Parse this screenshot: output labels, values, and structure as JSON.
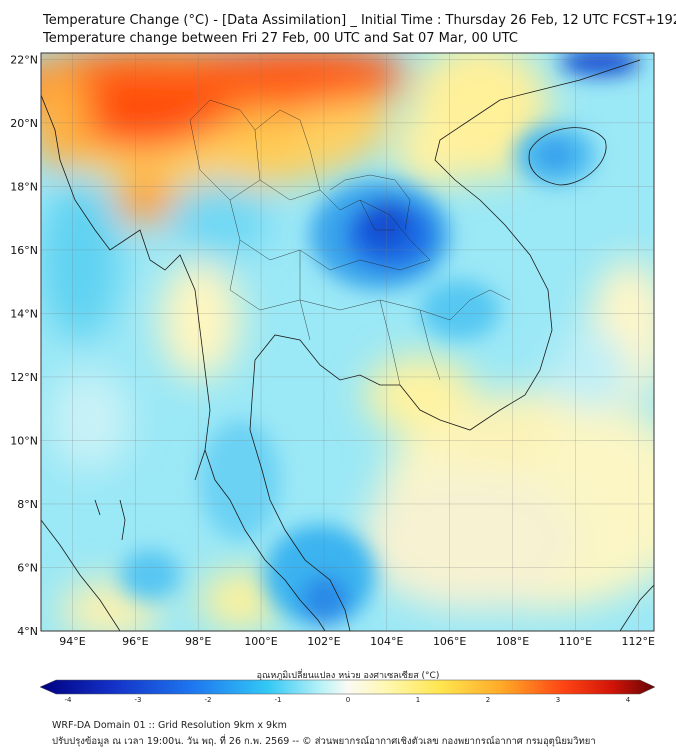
{
  "title": {
    "line1": "Temperature Change (°C) - [Data Assimilation] _ Initial Time : Thursday 26 Feb, 12 UTC FCST+192",
    "line2": "Temperature change between Fri 27 Feb, 00 UTC and Sat 07 Mar, 00 UTC"
  },
  "map": {
    "lat_labels": [
      "22°N",
      "20°N",
      "18°N",
      "16°N",
      "14°N",
      "12°N",
      "10°N",
      "8°N",
      "6°N",
      "4°N"
    ],
    "lat_values": [
      22,
      20,
      18,
      16,
      14,
      12,
      10,
      8,
      6,
      4
    ],
    "lon_labels": [
      "94°E",
      "96°E",
      "98°E",
      "100°E",
      "102°E",
      "104°E",
      "106°E",
      "108°E",
      "110°E",
      "112°E"
    ],
    "lon_values": [
      94,
      96,
      98,
      100,
      102,
      104,
      106,
      108,
      110,
      112
    ],
    "lon_range": [
      93,
      112.5
    ],
    "lat_range": [
      4,
      22.2
    ]
  },
  "colorbar": {
    "label": "อุณหภูมิเปลี่ยนแปลง หน่วย องศาเซลเซียส (°C)",
    "ticks": [
      "-4",
      "-3",
      "-2",
      "-1",
      "0",
      "1",
      "2",
      "3",
      "4"
    ],
    "tick_values": [
      -4,
      -3,
      -2,
      -1,
      0,
      1,
      2,
      3,
      4
    ],
    "colors": [
      "#0a0a8c",
      "#1432c8",
      "#1e64e6",
      "#2896f0",
      "#32c8f5",
      "#78e6f5",
      "#c8f5f5",
      "#fafaf0",
      "#fff5a0",
      "#ffe650",
      "#ffb428",
      "#ff7814",
      "#ff3c0a",
      "#e61405",
      "#aa0a0a",
      "#640505"
    ]
  },
  "footer": {
    "line1": "WRF-DA Domain 01 :: Grid Resolution 9km x 9km",
    "line2": "ปรับปรุงข้อมูล ณ เวลา 19:00น. วัน พฤ. ที่ 26 ก.พ. 2569 -- © ส่วนพยากรณ์อากาศเชิงตัวเลข กองพยากรณ์อากาศ กรมอุตุนิยมวิทยา"
  }
}
